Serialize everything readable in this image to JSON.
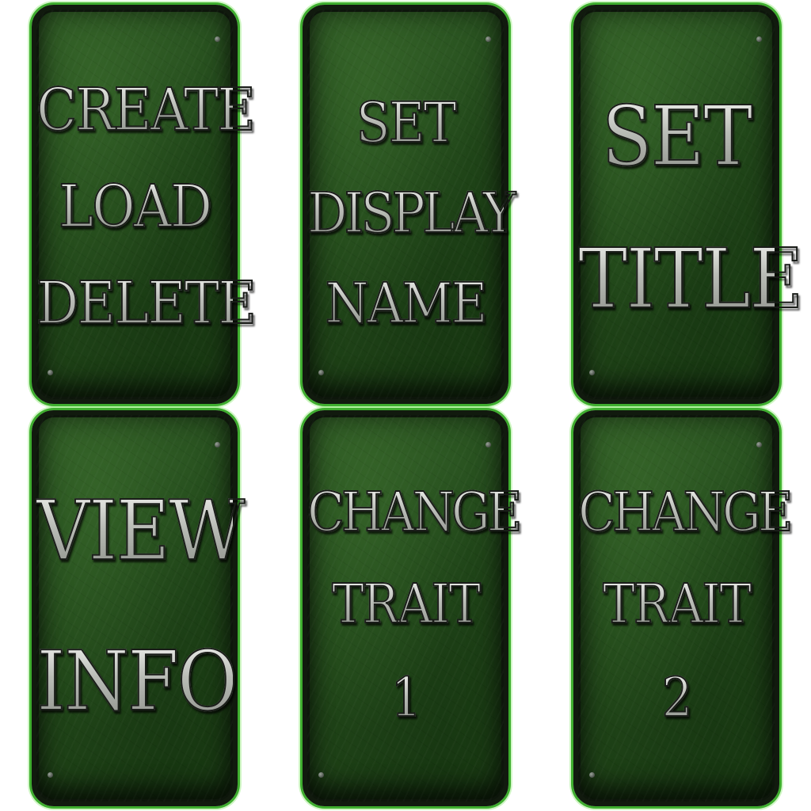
{
  "menu": {
    "cards": [
      {
        "lines": [
          "CREATE",
          "LOAD",
          "DELETE"
        ]
      },
      {
        "lines": [
          "SET",
          "DISPLAY",
          "NAME"
        ]
      },
      {
        "lines": [
          "SET",
          "TITLE"
        ]
      },
      {
        "lines": [
          "VIEW",
          "INFO"
        ]
      },
      {
        "lines": [
          "CHANGE",
          "TRAIT",
          "1"
        ]
      },
      {
        "lines": [
          "CHANGE",
          "TRAIT",
          "2"
        ]
      }
    ]
  },
  "colors": {
    "card_green": "#234a1b",
    "card_glow": "#3fae2f",
    "text_silver": "#cfd2cd"
  }
}
